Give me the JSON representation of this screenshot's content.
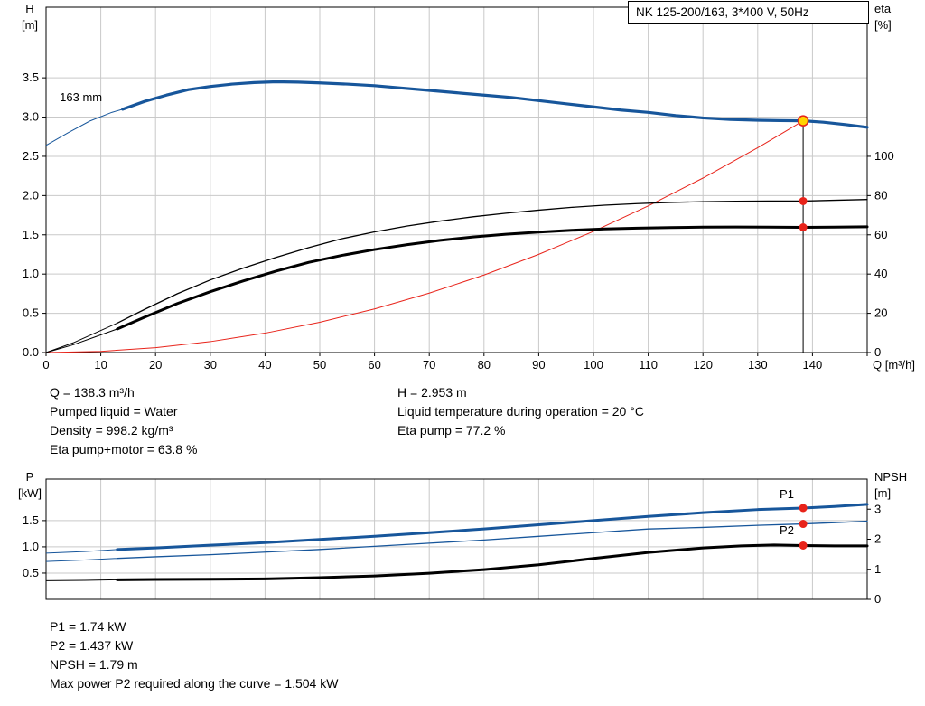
{
  "title_box": {
    "text": "NK 125-200/163, 3*400 V, 50Hz"
  },
  "colors": {
    "curve_blue": "#17569b",
    "curve_black": "#000000",
    "curve_red": "#e8231a",
    "marker_yellow": "#ffd400",
    "marker_red": "#e8231a",
    "grid": "#c9c9c9",
    "frame": "#000000"
  },
  "info_top": {
    "left": [
      "Q = 138.3 m³/h",
      "Pumped liquid = Water",
      "Density = 998.2 kg/m³",
      "Eta pump+motor = 63.8 %"
    ],
    "right": [
      "H = 2.953 m",
      "Liquid temperature during operation = 20 °C",
      "Eta pump = 77.2 %"
    ]
  },
  "info_bottom": {
    "lines": [
      "P1 = 1.74 kW",
      "P2 = 1.437 kW",
      "NPSH = 1.79 m",
      "Max power P2 required along the curve = 1.504 kW"
    ]
  },
  "chart_data": [
    {
      "type": "line",
      "title": "NK 125-200/163, 3*400 V, 50Hz",
      "x": {
        "min": 0,
        "max": 150,
        "label": "Q [m³/h]",
        "ticks_visible": true,
        "ticks": [
          0,
          10,
          20,
          30,
          40,
          50,
          60,
          70,
          80,
          90,
          100,
          110,
          120,
          130,
          140,
          150
        ],
        "tick_labels": [
          "0",
          "10",
          "20",
          "30",
          "40",
          "50",
          "60",
          "70",
          "80",
          "90",
          "100",
          "110",
          "120",
          "130",
          "140",
          ""
        ]
      },
      "y_left": {
        "min": 0,
        "max": 4.4,
        "title_lines": [
          "H",
          "[m]"
        ],
        "ticks": [
          0,
          0.5,
          1.0,
          1.5,
          2.0,
          2.5,
          3.0,
          3.5
        ],
        "tick_labels": [
          "0.0",
          "0.5",
          "1.0",
          "1.5",
          "2.0",
          "2.5",
          "3.0",
          "3.5"
        ]
      },
      "y_right": {
        "min": 0,
        "max": 176,
        "title_lines": [
          "eta",
          "[%]"
        ],
        "ticks": [
          0,
          20,
          40,
          60,
          80,
          100
        ],
        "tick_labels": [
          "0",
          "20",
          "40",
          "60",
          "80",
          "100"
        ]
      },
      "series": [
        {
          "name": "system-curve",
          "axis": "left",
          "color": "#e8231a",
          "width": 1,
          "points": [
            [
              0,
              0
            ],
            [
              10,
              0.015
            ],
            [
              20,
              0.062
            ],
            [
              30,
              0.139
            ],
            [
              40,
              0.247
            ],
            [
              50,
              0.386
            ],
            [
              60,
              0.556
            ],
            [
              70,
              0.757
            ],
            [
              80,
              0.988
            ],
            [
              90,
              1.251
            ],
            [
              100,
              1.544
            ],
            [
              110,
              1.868
            ],
            [
              120,
              2.223
            ],
            [
              130,
              2.61
            ],
            [
              135,
              2.815
            ],
            [
              138.3,
              2.953
            ]
          ]
        },
        {
          "name": "eta-pump-curve",
          "axis": "right",
          "color": "#000000",
          "width": 1.3,
          "lead": [
            [
              0,
              0
            ],
            [
              5,
              5
            ],
            [
              9,
              10
            ],
            [
              13,
              15
            ]
          ],
          "points": [
            [
              13,
              15
            ],
            [
              18,
              22
            ],
            [
              24,
              30
            ],
            [
              30,
              37
            ],
            [
              36,
              43
            ],
            [
              42,
              48.5
            ],
            [
              48,
              53.5
            ],
            [
              54,
              58
            ],
            [
              60,
              61.5
            ],
            [
              66,
              64.5
            ],
            [
              72,
              67
            ],
            [
              78,
              69.2
            ],
            [
              84,
              71
            ],
            [
              90,
              72.6
            ],
            [
              96,
              74
            ],
            [
              102,
              75.1
            ],
            [
              108,
              75.9
            ],
            [
              114,
              76.5
            ],
            [
              120,
              76.9
            ],
            [
              126,
              77.1
            ],
            [
              132,
              77.2
            ],
            [
              138.3,
              77.2
            ],
            [
              144,
              77.6
            ],
            [
              150,
              78
            ]
          ]
        },
        {
          "name": "eta-pump-motor-curve",
          "axis": "right",
          "color": "#000000",
          "width": 3,
          "lead": [
            [
              0,
              0
            ],
            [
              5,
              4
            ],
            [
              9,
              8
            ],
            [
              13,
              12
            ]
          ],
          "points": [
            [
              13,
              12
            ],
            [
              18,
              18
            ],
            [
              24,
              25
            ],
            [
              30,
              31
            ],
            [
              36,
              36.5
            ],
            [
              42,
              41.5
            ],
            [
              48,
              46
            ],
            [
              54,
              49.5
            ],
            [
              60,
              52.5
            ],
            [
              66,
              55
            ],
            [
              72,
              57.2
            ],
            [
              78,
              58.9
            ],
            [
              84,
              60.3
            ],
            [
              90,
              61.4
            ],
            [
              96,
              62.3
            ],
            [
              102,
              63
            ],
            [
              108,
              63.4
            ],
            [
              114,
              63.7
            ],
            [
              120,
              63.9
            ],
            [
              126,
              64
            ],
            [
              132,
              63.9
            ],
            [
              138.3,
              63.8
            ],
            [
              144,
              63.9
            ],
            [
              150,
              64.1
            ]
          ]
        },
        {
          "name": "pump-curve-163mm",
          "axis": "left",
          "color": "#17569b",
          "width": 3.2,
          "lead": [
            [
              0,
              2.64
            ],
            [
              4,
              2.8
            ],
            [
              8,
              2.95
            ],
            [
              12,
              3.06
            ],
            [
              14,
              3.1
            ]
          ],
          "points": [
            [
              14,
              3.1
            ],
            [
              18,
              3.2
            ],
            [
              22,
              3.28
            ],
            [
              26,
              3.35
            ],
            [
              30,
              3.39
            ],
            [
              34,
              3.42
            ],
            [
              38,
              3.44
            ],
            [
              42,
              3.45
            ],
            [
              46,
              3.445
            ],
            [
              50,
              3.435
            ],
            [
              55,
              3.42
            ],
            [
              60,
              3.4
            ],
            [
              65,
              3.37
            ],
            [
              70,
              3.34
            ],
            [
              75,
              3.31
            ],
            [
              80,
              3.28
            ],
            [
              85,
              3.25
            ],
            [
              90,
              3.21
            ],
            [
              95,
              3.17
            ],
            [
              100,
              3.13
            ],
            [
              105,
              3.09
            ],
            [
              110,
              3.06
            ],
            [
              115,
              3.02
            ],
            [
              120,
              2.99
            ],
            [
              125,
              2.97
            ],
            [
              130,
              2.96
            ],
            [
              134,
              2.956
            ],
            [
              138.3,
              2.953
            ],
            [
              142,
              2.935
            ],
            [
              146,
              2.905
            ],
            [
              150,
              2.87
            ]
          ]
        }
      ],
      "vline": {
        "x": 138.3,
        "from": 0,
        "to": 2.953,
        "axis": "left"
      },
      "markers": [
        {
          "x": 138.3,
          "y": 2.953,
          "axis": "left",
          "style": "duty-point",
          "label": "duty point Q=138.3 H=2.953"
        },
        {
          "x": 138.3,
          "y": 77.2,
          "axis": "right",
          "style": "red-dot",
          "label": "eta pump 77.2 %"
        },
        {
          "x": 138.3,
          "y": 63.8,
          "axis": "right",
          "style": "red-dot",
          "label": "eta pump+motor 63.8 %"
        }
      ],
      "annotations": [
        {
          "text": "163 mm",
          "x": 2.5,
          "y": 3.2,
          "axis": "left",
          "color": "#000000"
        }
      ]
    },
    {
      "type": "line",
      "title": "Power and NPSH curves",
      "x": {
        "min": 0,
        "max": 150,
        "label": "",
        "ticks_visible": false,
        "ticks": [
          0,
          10,
          20,
          30,
          40,
          50,
          60,
          70,
          80,
          90,
          100,
          110,
          120,
          130,
          140,
          150
        ],
        "tick_labels": [
          "",
          "",
          "",
          "",
          "",
          "",
          "",
          "",
          "",
          "",
          "",
          "",
          "",
          "",
          "",
          ""
        ]
      },
      "y_left": {
        "min": 0,
        "max": 2.29,
        "title_lines": [
          "P",
          "[kW]"
        ],
        "ticks": [
          0.5,
          1.0,
          1.5
        ],
        "tick_labels": [
          "0.5",
          "1.0",
          "1.5"
        ]
      },
      "y_right": {
        "min": 0,
        "max": 4.0,
        "title_lines": [
          "NPSH",
          "[m]"
        ],
        "ticks": [
          0,
          1,
          2,
          3
        ],
        "tick_labels": [
          "0",
          "1",
          "2",
          "3"
        ]
      },
      "series": [
        {
          "name": "p2-curve",
          "axis": "left",
          "color": "#17569b",
          "width": 1.3,
          "lead": [
            [
              0,
              0.72
            ],
            [
              7,
              0.75
            ],
            [
              13,
              0.78
            ]
          ],
          "points": [
            [
              13,
              0.78
            ],
            [
              20,
              0.81
            ],
            [
              30,
              0.85
            ],
            [
              40,
              0.9
            ],
            [
              50,
              0.95
            ],
            [
              60,
              1.01
            ],
            [
              70,
              1.07
            ],
            [
              80,
              1.13
            ],
            [
              90,
              1.2
            ],
            [
              100,
              1.27
            ],
            [
              110,
              1.34
            ],
            [
              120,
              1.37
            ],
            [
              130,
              1.41
            ],
            [
              138.3,
              1.437
            ],
            [
              144,
              1.46
            ],
            [
              150,
              1.49
            ]
          ]
        },
        {
          "name": "p1-curve",
          "axis": "left",
          "color": "#17569b",
          "width": 3,
          "lead": [
            [
              0,
              0.88
            ],
            [
              7,
              0.91
            ],
            [
              13,
              0.95
            ]
          ],
          "points": [
            [
              13,
              0.95
            ],
            [
              20,
              0.98
            ],
            [
              30,
              1.03
            ],
            [
              40,
              1.08
            ],
            [
              50,
              1.14
            ],
            [
              60,
              1.2
            ],
            [
              70,
              1.27
            ],
            [
              80,
              1.34
            ],
            [
              90,
              1.42
            ],
            [
              100,
              1.5
            ],
            [
              110,
              1.58
            ],
            [
              120,
              1.65
            ],
            [
              130,
              1.71
            ],
            [
              138.3,
              1.74
            ],
            [
              144,
              1.77
            ],
            [
              150,
              1.81
            ]
          ]
        },
        {
          "name": "npsh-curve",
          "axis": "right",
          "color": "#000000",
          "width": 3,
          "lead": [
            [
              0,
              0.62
            ],
            [
              7,
              0.63
            ],
            [
              13,
              0.65
            ]
          ],
          "points": [
            [
              13,
              0.65
            ],
            [
              20,
              0.66
            ],
            [
              30,
              0.67
            ],
            [
              40,
              0.68
            ],
            [
              50,
              0.72
            ],
            [
              60,
              0.78
            ],
            [
              70,
              0.87
            ],
            [
              80,
              0.99
            ],
            [
              90,
              1.15
            ],
            [
              100,
              1.36
            ],
            [
              110,
              1.56
            ],
            [
              120,
              1.71
            ],
            [
              127,
              1.78
            ],
            [
              133,
              1.81
            ],
            [
              138.3,
              1.79
            ],
            [
              144,
              1.78
            ],
            [
              150,
              1.78
            ]
          ]
        }
      ],
      "markers": [
        {
          "x": 138.3,
          "y": 1.74,
          "axis": "left",
          "style": "red-dot",
          "label": "P1 = 1.74 kW"
        },
        {
          "x": 138.3,
          "y": 1.437,
          "axis": "left",
          "style": "red-dot",
          "label": "P2 = 1.437 kW"
        },
        {
          "x": 138.3,
          "y": 1.79,
          "axis": "right",
          "style": "red-dot",
          "label": "NPSH = 1.79 m"
        }
      ],
      "annotations": [
        {
          "text": "P1",
          "x": 134,
          "y": 1.93,
          "axis": "left",
          "color": "#17569b"
        },
        {
          "text": "P2",
          "x": 134,
          "y": 1.24,
          "axis": "left",
          "color": "#17569b"
        }
      ]
    }
  ]
}
